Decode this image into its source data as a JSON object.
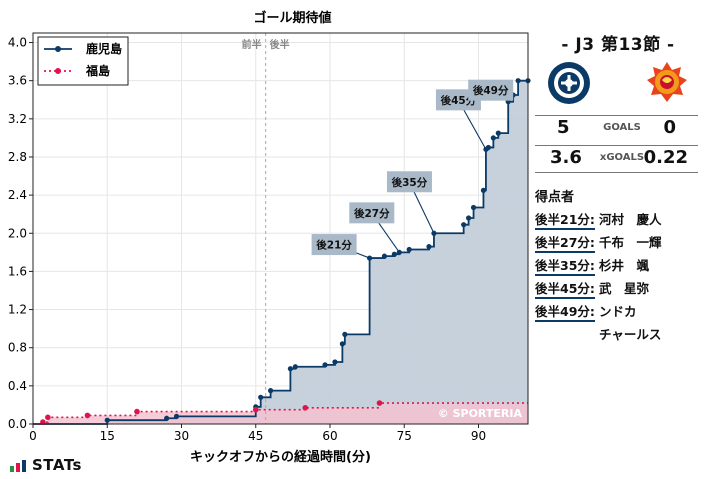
{
  "chart_data": {
    "type": "step-line",
    "title": "ゴール期待値",
    "xlabel": "キックオフからの経過時間(分)",
    "ylabel": "",
    "xlim": [
      0,
      100
    ],
    "ylim": [
      0,
      4.1
    ],
    "x_ticks": [
      0,
      15,
      30,
      45,
      60,
      75,
      90
    ],
    "y_ticks": [
      0.0,
      0.4,
      0.8,
      1.2,
      1.6,
      2.0,
      2.4,
      2.8,
      3.2,
      3.6,
      4.0
    ],
    "halftime_line": 47,
    "halftime_labels": {
      "first": "前半",
      "second": "後半"
    },
    "grid": true,
    "legend_position": "top-left",
    "watermark": "© SPORTERIA",
    "series": [
      {
        "name": "鹿児島",
        "color": "#0b3a66",
        "fill": "#c4cfda",
        "style": "solid",
        "x": [
          15,
          27,
          29,
          45,
          46,
          48,
          52,
          53,
          59,
          61,
          62.5,
          63,
          68,
          71,
          73,
          74,
          76,
          80,
          81,
          87,
          88,
          89,
          91,
          91.5,
          92,
          93,
          94,
          96,
          97,
          98,
          100
        ],
        "y": [
          0.04,
          0.06,
          0.08,
          0.18,
          0.28,
          0.35,
          0.58,
          0.6,
          0.62,
          0.65,
          0.84,
          0.94,
          1.74,
          1.76,
          1.78,
          1.8,
          1.83,
          1.86,
          2.0,
          2.09,
          2.16,
          2.27,
          2.45,
          2.88,
          2.9,
          3.0,
          3.05,
          3.38,
          3.45,
          3.6,
          3.6
        ]
      },
      {
        "name": "福島",
        "color": "#e0144c",
        "fill": "#f3c3d0",
        "style": "dotted",
        "x": [
          2,
          3,
          11,
          21,
          45,
          55,
          70,
          100
        ],
        "y": [
          0.02,
          0.07,
          0.09,
          0.13,
          0.15,
          0.17,
          0.22,
          0.22
        ]
      }
    ],
    "annotations": [
      {
        "label": "後21分",
        "series": "鹿児島",
        "x": 68,
        "y": 1.74
      },
      {
        "label": "後27分",
        "series": "鹿児島",
        "x": 74,
        "y": 1.8
      },
      {
        "label": "後35分",
        "series": "鹿児島",
        "x": 81,
        "y": 2.0
      },
      {
        "label": "後45分",
        "series": "鹿児島",
        "x": 91.5,
        "y": 2.88
      },
      {
        "label": "後49分",
        "series": "鹿児島",
        "x": 96,
        "y": 3.38
      }
    ]
  },
  "match": {
    "title": "- J3 第13節 -",
    "home_goals": "5",
    "away_goals": "0",
    "goals_label": "GOALS",
    "home_xg": "3.6",
    "away_xg": "0.22",
    "xg_label": "xGOALS",
    "home_crest_text": "KAGOSHIMA UNITED FC",
    "away_crest_text": "FUKUSHIMA UNITED"
  },
  "scorers": {
    "title": "得点者",
    "items": [
      {
        "time": "後半21分:",
        "name": "河村　慶人"
      },
      {
        "time": "後半27分:",
        "name": "千布　一輝"
      },
      {
        "time": "後半35分:",
        "name": "杉井　颯"
      },
      {
        "time": "後半45分:",
        "name": "武　星弥"
      },
      {
        "time": "後半49分:",
        "name": "ンドカ\nチャールス"
      }
    ]
  },
  "brand": "STATs"
}
